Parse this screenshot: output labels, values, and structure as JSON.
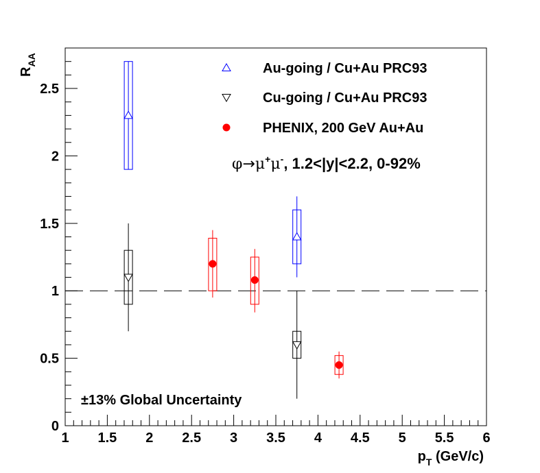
{
  "chart_data": {
    "type": "scatter",
    "xlabel": {
      "main": "p",
      "sub": "T",
      "unit": " (GeV/c)"
    },
    "ylabel": {
      "main": "R",
      "sub": "AA"
    },
    "xlim": [
      1,
      6
    ],
    "ylim": [
      0,
      2.8
    ],
    "x_ticks": [
      "1",
      "1.5",
      "2",
      "2.5",
      "3",
      "3.5",
      "4",
      "4.5",
      "5",
      "5.5",
      "6"
    ],
    "y_ticks": [
      "0",
      "0.5",
      "1",
      "1.5",
      "2",
      "2.5"
    ],
    "reference_line": 1,
    "legend_position": "top-right",
    "annotation": {
      "phi": "φ",
      "arrow": "→",
      "mu": "μ",
      "plus": "+",
      "minus": "-",
      "rest": ", 1.2<|y|<2.2, 0-92%"
    },
    "global_uncertainty": "±13% Global Uncertainty",
    "colors": {
      "au_going": "#0000ff",
      "cu_going": "#000000",
      "phenix": "#ff0000"
    },
    "series": [
      {
        "name": "Au-going / Cu+Au PRC93",
        "marker": "triangle-up-open",
        "color": "#0000ff",
        "points": [
          {
            "x": 1.75,
            "y": 2.3,
            "stat_low": 1.9,
            "stat_high": 2.7,
            "sys_low": 1.9,
            "sys_high": 2.7
          },
          {
            "x": 3.75,
            "y": 1.4,
            "stat_low": 1.1,
            "stat_high": 1.7,
            "sys_low": 1.2,
            "sys_high": 1.6
          }
        ]
      },
      {
        "name": "Cu-going / Cu+Au PRC93",
        "marker": "triangle-down-open",
        "color": "#000000",
        "points": [
          {
            "x": 1.75,
            "y": 1.1,
            "stat_low": 0.7,
            "stat_high": 1.5,
            "sys_low": 0.9,
            "sys_high": 1.3
          },
          {
            "x": 3.75,
            "y": 0.6,
            "stat_low": 0.2,
            "stat_high": 1.0,
            "sys_low": 0.5,
            "sys_high": 0.7
          }
        ]
      },
      {
        "name": "PHENIX, 200 GeV Au+Au",
        "marker": "circle-filled",
        "color": "#ff0000",
        "points": [
          {
            "x": 2.75,
            "y": 1.2,
            "stat_low": 0.95,
            "stat_high": 1.45,
            "sys_low": 1.0,
            "sys_high": 1.39
          },
          {
            "x": 3.25,
            "y": 1.08,
            "stat_low": 0.84,
            "stat_high": 1.31,
            "sys_low": 0.9,
            "sys_high": 1.25
          },
          {
            "x": 4.25,
            "y": 0.45,
            "stat_low": 0.35,
            "stat_high": 0.55,
            "sys_low": 0.38,
            "sys_high": 0.52
          }
        ]
      }
    ]
  }
}
